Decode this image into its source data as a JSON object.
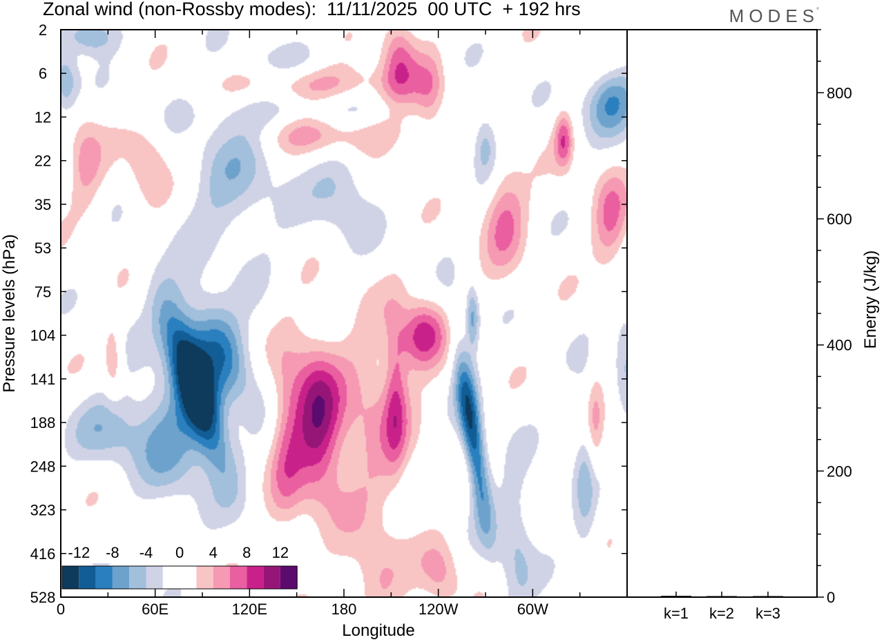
{
  "header": {
    "title": "Zonal wind (non-Rossby modes):  11/11/2025  00 UTC  + 192 hrs",
    "logo_text": "MODES",
    "logo_mark": "°"
  },
  "colors": {
    "neg": [
      "#0e3b5c",
      "#125d96",
      "#2a80bf",
      "#6da2cc",
      "#a2bfdc",
      "#d0d3e6"
    ],
    "pos": [
      "#f8c5c4",
      "#f699b3",
      "#ea5fa0",
      "#c9218a",
      "#961678",
      "#5b0a6e"
    ],
    "zero": "#ffffff"
  },
  "chart_data": [
    {
      "type": "heatmap",
      "title": "Zonal wind (non-Rossby modes):  11/11/2025  00 UTC  + 192 hrs",
      "xlabel": "Longitude",
      "ylabel": "Pressure levels (hPa)",
      "x_ticks": [
        "0",
        "60E",
        "120E",
        "180",
        "120W",
        "60W"
      ],
      "y_ticks": [
        "2",
        "6",
        "12",
        "22",
        "35",
        "53",
        "75",
        "104",
        "141",
        "188",
        "248",
        "323",
        "416",
        "528"
      ],
      "colorbar": {
        "labels": [
          "-12",
          "-8",
          "-4",
          "0",
          "4",
          "8",
          "12"
        ],
        "levels": [
          -14,
          -12,
          -10,
          -8,
          -6,
          -4,
          -2,
          2,
          4,
          6,
          8,
          10,
          12,
          14
        ]
      },
      "features": [
        {
          "lon": 85,
          "level": 8.2,
          "value": -14.5,
          "slon": 9,
          "slev": 1.3,
          "tilt": 0.9
        },
        {
          "lon": 100,
          "level": 7.3,
          "value": -9.0,
          "slon": 14,
          "slev": 0.9,
          "tilt": 1.0
        },
        {
          "lon": 70,
          "level": 9.3,
          "value": -6.5,
          "slon": 18,
          "slev": 1.0,
          "tilt": 0.4
        },
        {
          "lon": 262,
          "level": 9.3,
          "value": -12.0,
          "slon": 5,
          "slev": 1.5,
          "tilt": 0.4
        },
        {
          "lon": 163,
          "level": 9.0,
          "value": 10.5,
          "slon": 11,
          "slev": 1.3,
          "tilt": 0.1
        },
        {
          "lon": 143,
          "level": 9.4,
          "value": 5.5,
          "slon": 8,
          "slev": 1.5,
          "tilt": 0.0
        },
        {
          "lon": 230,
          "level": 7.0,
          "value": 9.0,
          "slon": 10,
          "slev": 0.55,
          "tilt": -0.2
        },
        {
          "lon": 198,
          "level": 9.0,
          "value": 4.5,
          "slon": 18,
          "slev": 1.7,
          "tilt": 0.0
        },
        {
          "lon": 213,
          "level": 8.4,
          "value": 5.5,
          "slon": 5,
          "slev": 1.2,
          "tilt": 0.0
        },
        {
          "lon": 160,
          "level": 1.3,
          "value": 9.0,
          "slon": 36,
          "slev": 0.45,
          "tilt": 0.35
        },
        {
          "lon": 173,
          "level": 2.3,
          "value": 7.5,
          "slon": 30,
          "slev": 0.4,
          "tilt": 0.3
        },
        {
          "lon": 158,
          "level": 1.8,
          "value": -8.0,
          "slon": 38,
          "slev": 0.4,
          "tilt": 0.35
        },
        {
          "lon": 150,
          "level": 0.8,
          "value": -4.5,
          "slon": 32,
          "slev": 0.35,
          "tilt": 0.35
        },
        {
          "lon": 215,
          "level": 0.6,
          "value": 7.0,
          "slon": 8,
          "slev": 0.7,
          "tilt": 0.0
        },
        {
          "lon": 235,
          "level": 1.4,
          "value": 4.5,
          "slon": 7,
          "slev": 0.7,
          "tilt": 0.0
        },
        {
          "lon": 350,
          "level": 1.6,
          "value": -8.0,
          "slon": 12,
          "slev": 0.55,
          "tilt": -0.3
        },
        {
          "lon": 320,
          "level": 2.5,
          "value": 7.0,
          "slon": 4,
          "slev": 0.45,
          "tilt": 0.0
        },
        {
          "lon": 270,
          "level": 2.6,
          "value": -6.0,
          "slon": 6,
          "slev": 0.6,
          "tilt": 0.0
        },
        {
          "lon": 282,
          "level": 4.2,
          "value": 6.0,
          "slon": 10,
          "slev": 0.9,
          "tilt": 0.0
        },
        {
          "lon": 350,
          "level": 4.4,
          "value": 5.5,
          "slon": 8,
          "slev": 0.9,
          "tilt": 0.0
        },
        {
          "lon": 180,
          "level": 3.6,
          "value": -4.5,
          "slon": 14,
          "slev": 0.9,
          "tilt": 0.0
        },
        {
          "lon": 110,
          "level": 3.6,
          "value": -4.5,
          "slon": 22,
          "slev": 1.2,
          "tilt": 0.0
        },
        {
          "lon": 55,
          "level": 3.1,
          "value": 4.5,
          "slon": 9,
          "slev": 0.7,
          "tilt": 0.0
        },
        {
          "lon": 15,
          "level": 3.0,
          "value": 4.5,
          "slon": 8,
          "slev": 0.8,
          "tilt": 0.0
        },
        {
          "lon": 2,
          "level": 1.2,
          "value": -6.0,
          "slon": 6,
          "slev": 0.5,
          "tilt": 0.0
        },
        {
          "lon": 18,
          "level": 0.1,
          "value": -7.0,
          "slon": 12,
          "slev": 0.3,
          "tilt": 0.0
        },
        {
          "lon": 290,
          "level": 11.8,
          "value": -4.5,
          "slon": 8,
          "slev": 1.3,
          "tilt": 0.0
        },
        {
          "lon": 335,
          "level": 10.3,
          "value": -4.5,
          "slon": 6,
          "slev": 1.5,
          "tilt": 0.0
        },
        {
          "lon": 30,
          "level": 9.2,
          "value": -4.5,
          "slon": 16,
          "slev": 0.6,
          "tilt": 0.0
        },
        {
          "lon": 340,
          "level": 9.3,
          "value": 5.0,
          "slon": 4,
          "slev": 1.0,
          "tilt": 0.0
        },
        {
          "lon": 200,
          "level": 12.6,
          "value": 4.5,
          "slon": 12,
          "slev": 0.7,
          "tilt": 0.0
        },
        {
          "lon": 242,
          "level": 12.5,
          "value": 4.5,
          "slon": 9,
          "slev": 0.6,
          "tilt": 0.0
        },
        {
          "lon": 360,
          "level": 7.3,
          "value": -5.0,
          "slon": 6,
          "slev": 0.8,
          "tilt": 0.0
        },
        {
          "lon": 33,
          "level": 7.6,
          "value": 4.5,
          "slon": 4,
          "slev": 0.6,
          "tilt": 0.0
        },
        {
          "lon": 262,
          "level": 6.6,
          "value": -7.0,
          "slon": 3,
          "slev": 0.5,
          "tilt": 0.0
        }
      ]
    },
    {
      "type": "bar",
      "ylabel": "Energy (J/kg)",
      "categories": [
        "k=1",
        "k=2",
        "k=3"
      ],
      "values": [
        2,
        1,
        1
      ],
      "ylim": [
        0,
        900
      ],
      "y_ticks": [
        "0",
        "200",
        "400",
        "600",
        "800"
      ]
    }
  ]
}
